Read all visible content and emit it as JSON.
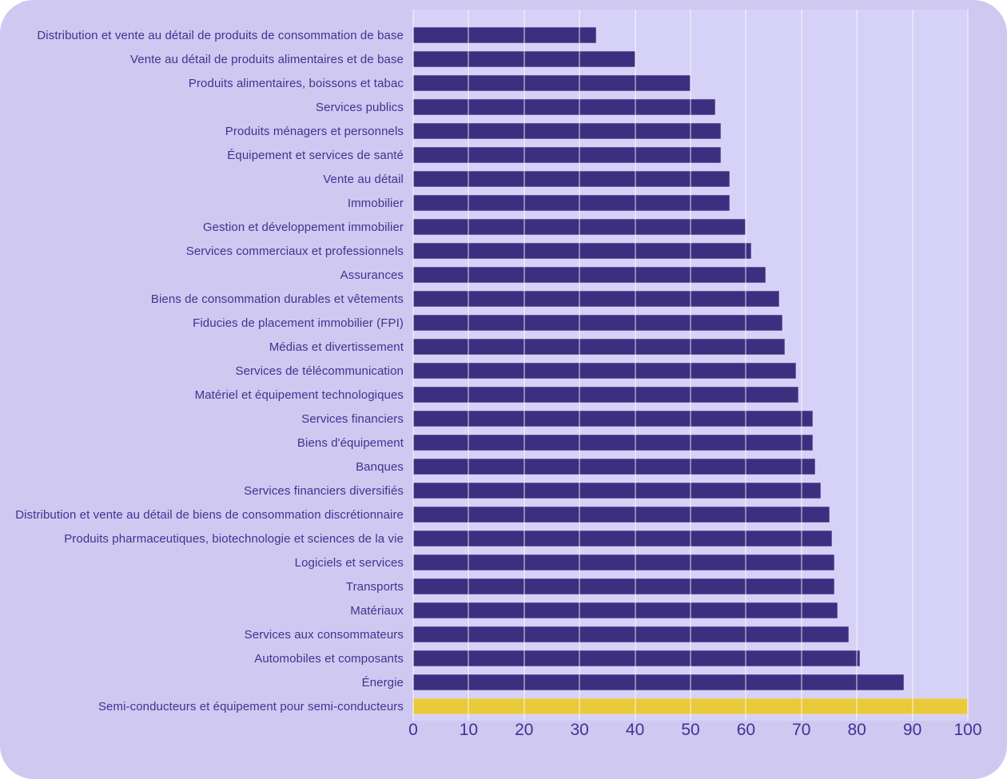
{
  "colors": {
    "page_background": "#ffffff",
    "card_background": "#cfc8f1",
    "plot_background": "#d6d1f6",
    "gridline": "rgba(255,255,255,0.42)",
    "bar": "#3d2f80",
    "highlight_bar": "#e9ca3d",
    "label_text": "#44318f",
    "tick_text": "#453095"
  },
  "chart_data": {
    "type": "bar",
    "orientation": "horizontal",
    "title": "",
    "xlabel": "",
    "ylabel": "",
    "xlim": [
      0,
      100
    ],
    "x_ticks": [
      0,
      10,
      20,
      30,
      40,
      50,
      60,
      70,
      80,
      90,
      100
    ],
    "grid": "vertical",
    "legend": "none",
    "highlight_index": 28,
    "categories": [
      "Distribution et vente au détail de produits de consommation de base",
      "Vente au détail de produits alimentaires et de base",
      "Produits alimentaires, boissons et tabac",
      "Services publics",
      "Produits ménagers et personnels",
      "Équipement et services de santé",
      "Vente au détail",
      "Immobilier",
      "Gestion et développement immobilier",
      "Services commerciaux et professionnels",
      "Assurances",
      "Biens de consommation durables et vêtements",
      "Fiducies de placement immobilier (FPI)",
      "Médias et divertissement",
      "Services de télécommunication",
      "Matériel et équipement technologiques",
      "Services financiers",
      "Biens d'équipement",
      "Banques",
      "Services financiers diversifiés",
      "Distribution et vente au détail de biens de consommation discrétionnaire",
      "Produits pharmaceutiques, biotechnologie et sciences de la vie",
      "Logiciels et services",
      "Transports",
      "Matériaux",
      "Services aux consommateurs",
      "Automobiles et composants",
      "Énergie",
      "Semi-conducteurs et équipement pour semi-conducteurs"
    ],
    "values": [
      33,
      40,
      50,
      54.5,
      55.5,
      55.5,
      57,
      57,
      60,
      61,
      63.5,
      66,
      66.5,
      67,
      69,
      69.5,
      72,
      72,
      72.5,
      73.5,
      75,
      75.5,
      76,
      76,
      76.5,
      78.5,
      80.5,
      88.5,
      100
    ]
  }
}
